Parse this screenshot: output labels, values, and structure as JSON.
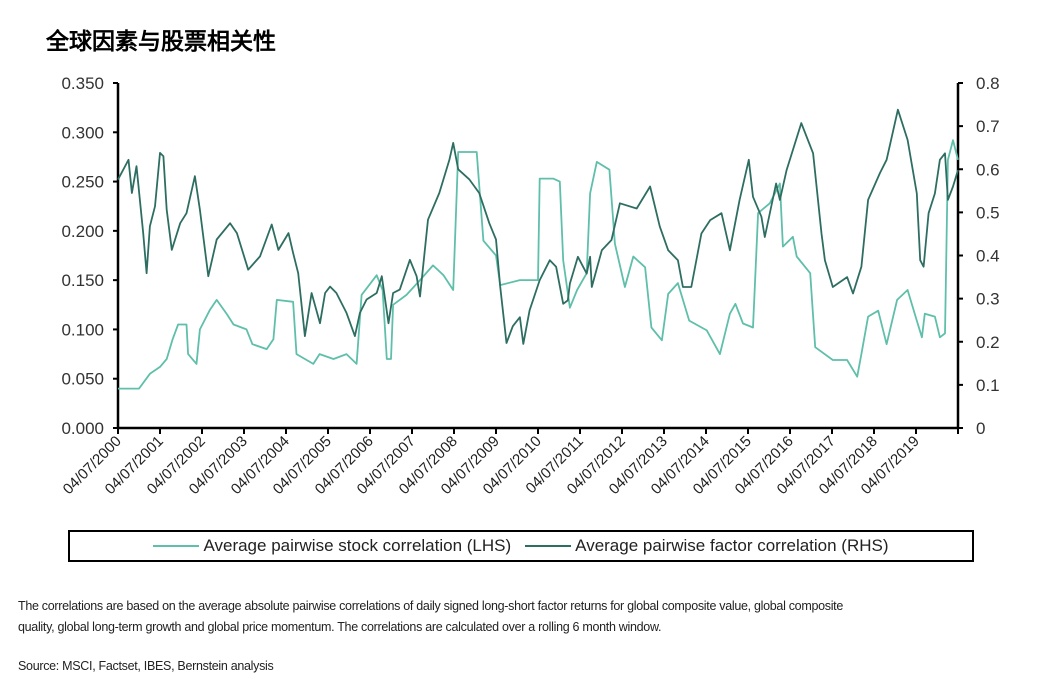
{
  "title": "全球因素与股票相关性",
  "chart_data": {
    "type": "line",
    "title": "全球因素与股票相关性",
    "x_tick_labels": [
      "04/07/2000",
      "04/07/2001",
      "04/07/2002",
      "04/07/2003",
      "04/07/2004",
      "04/07/2005",
      "04/07/2006",
      "04/07/2007",
      "04/07/2008",
      "04/07/2009",
      "04/07/2010",
      "04/07/2011",
      "04/07/2012",
      "04/07/2013",
      "04/07/2014",
      "04/07/2015",
      "04/07/2016",
      "04/07/2017",
      "04/07/2018",
      "04/07/2019"
    ],
    "xlim": [
      2000,
      2020
    ],
    "left_axis": {
      "ylim": [
        0,
        0.35
      ],
      "ticks": [
        "0.000",
        "0.050",
        "0.100",
        "0.150",
        "0.200",
        "0.250",
        "0.300",
        "0.350"
      ]
    },
    "right_axis": {
      "ylim": [
        0,
        0.8
      ],
      "ticks": [
        "0",
        "0.1",
        "0.2",
        "0.3",
        "0.4",
        "0.5",
        "0.6",
        "0.7",
        "0.8"
      ]
    },
    "legend_position": "bottom",
    "series": [
      {
        "name": "Average pairwise stock correlation (LHS)",
        "axis": "left",
        "color": "#5fbfab",
        "points": [
          [
            2000.0,
            0.04
          ],
          [
            2000.5,
            0.04
          ],
          [
            2000.76,
            0.055
          ],
          [
            2001.0,
            0.062
          ],
          [
            2001.16,
            0.07
          ],
          [
            2001.3,
            0.09
          ],
          [
            2001.43,
            0.105
          ],
          [
            2001.63,
            0.105
          ],
          [
            2001.67,
            0.075
          ],
          [
            2001.87,
            0.065
          ],
          [
            2001.95,
            0.1
          ],
          [
            2002.19,
            0.12
          ],
          [
            2002.35,
            0.13
          ],
          [
            2002.6,
            0.115
          ],
          [
            2002.75,
            0.105
          ],
          [
            2003.06,
            0.1
          ],
          [
            2003.2,
            0.085
          ],
          [
            2003.54,
            0.08
          ],
          [
            2003.7,
            0.09
          ],
          [
            2003.78,
            0.13
          ],
          [
            2004.17,
            0.128
          ],
          [
            2004.25,
            0.075
          ],
          [
            2004.65,
            0.065
          ],
          [
            2004.8,
            0.075
          ],
          [
            2005.13,
            0.07
          ],
          [
            2005.44,
            0.075
          ],
          [
            2005.68,
            0.065
          ],
          [
            2005.8,
            0.135
          ],
          [
            2006.16,
            0.155
          ],
          [
            2006.3,
            0.14
          ],
          [
            2006.4,
            0.07
          ],
          [
            2006.5,
            0.07
          ],
          [
            2006.55,
            0.125
          ],
          [
            2006.87,
            0.135
          ],
          [
            2007.19,
            0.15
          ],
          [
            2007.5,
            0.165
          ],
          [
            2007.75,
            0.155
          ],
          [
            2007.98,
            0.14
          ],
          [
            2008.1,
            0.28
          ],
          [
            2008.54,
            0.28
          ],
          [
            2008.7,
            0.19
          ],
          [
            2009.0,
            0.175
          ],
          [
            2009.1,
            0.145
          ],
          [
            2009.57,
            0.15
          ],
          [
            2010.0,
            0.15
          ],
          [
            2010.04,
            0.253
          ],
          [
            2010.36,
            0.253
          ],
          [
            2010.52,
            0.25
          ],
          [
            2010.6,
            0.17
          ],
          [
            2010.76,
            0.122
          ],
          [
            2010.93,
            0.14
          ],
          [
            2011.16,
            0.157
          ],
          [
            2011.24,
            0.238
          ],
          [
            2011.4,
            0.27
          ],
          [
            2011.7,
            0.262
          ],
          [
            2011.83,
            0.187
          ],
          [
            2012.07,
            0.143
          ],
          [
            2012.27,
            0.174
          ],
          [
            2012.55,
            0.163
          ],
          [
            2012.7,
            0.102
          ],
          [
            2012.95,
            0.089
          ],
          [
            2013.1,
            0.136
          ],
          [
            2013.33,
            0.147
          ],
          [
            2013.6,
            0.109
          ],
          [
            2014.02,
            0.099
          ],
          [
            2014.33,
            0.075
          ],
          [
            2014.57,
            0.116
          ],
          [
            2014.7,
            0.126
          ],
          [
            2014.88,
            0.106
          ],
          [
            2015.12,
            0.102
          ],
          [
            2015.24,
            0.218
          ],
          [
            2015.52,
            0.228
          ],
          [
            2015.76,
            0.248
          ],
          [
            2015.83,
            0.184
          ],
          [
            2016.07,
            0.194
          ],
          [
            2016.16,
            0.174
          ],
          [
            2016.48,
            0.157
          ],
          [
            2016.6,
            0.082
          ],
          [
            2017.02,
            0.069
          ],
          [
            2017.36,
            0.069
          ],
          [
            2017.6,
            0.052
          ],
          [
            2017.7,
            0.075
          ],
          [
            2017.86,
            0.113
          ],
          [
            2018.1,
            0.119
          ],
          [
            2018.3,
            0.085
          ],
          [
            2018.55,
            0.13
          ],
          [
            2018.8,
            0.14
          ],
          [
            2019.02,
            0.109
          ],
          [
            2019.14,
            0.092
          ],
          [
            2019.21,
            0.116
          ],
          [
            2019.45,
            0.113
          ],
          [
            2019.57,
            0.092
          ],
          [
            2019.69,
            0.096
          ],
          [
            2019.76,
            0.272
          ],
          [
            2019.88,
            0.292
          ],
          [
            2020.0,
            0.272
          ]
        ]
      },
      {
        "name": "Average pairwise factor correlation (RHS)",
        "axis": "right",
        "color": "#2e6e62",
        "points": [
          [
            2000.0,
            0.576
          ],
          [
            2000.25,
            0.622
          ],
          [
            2000.33,
            0.545
          ],
          [
            2000.44,
            0.607
          ],
          [
            2000.6,
            0.452
          ],
          [
            2000.68,
            0.359
          ],
          [
            2000.76,
            0.468
          ],
          [
            2000.88,
            0.514
          ],
          [
            2001.0,
            0.638
          ],
          [
            2001.08,
            0.63
          ],
          [
            2001.16,
            0.506
          ],
          [
            2001.28,
            0.413
          ],
          [
            2001.48,
            0.475
          ],
          [
            2001.63,
            0.498
          ],
          [
            2001.83,
            0.584
          ],
          [
            2001.95,
            0.506
          ],
          [
            2002.15,
            0.352
          ],
          [
            2002.35,
            0.437
          ],
          [
            2002.67,
            0.475
          ],
          [
            2002.83,
            0.452
          ],
          [
            2003.1,
            0.367
          ],
          [
            2003.38,
            0.398
          ],
          [
            2003.66,
            0.472
          ],
          [
            2003.82,
            0.413
          ],
          [
            2004.06,
            0.452
          ],
          [
            2004.17,
            0.406
          ],
          [
            2004.29,
            0.359
          ],
          [
            2004.45,
            0.213
          ],
          [
            2004.61,
            0.313
          ],
          [
            2004.81,
            0.243
          ],
          [
            2004.93,
            0.313
          ],
          [
            2005.05,
            0.328
          ],
          [
            2005.2,
            0.313
          ],
          [
            2005.44,
            0.267
          ],
          [
            2005.64,
            0.213
          ],
          [
            2005.76,
            0.267
          ],
          [
            2005.92,
            0.298
          ],
          [
            2006.16,
            0.313
          ],
          [
            2006.28,
            0.352
          ],
          [
            2006.44,
            0.243
          ],
          [
            2006.55,
            0.313
          ],
          [
            2006.71,
            0.321
          ],
          [
            2006.95,
            0.39
          ],
          [
            2007.11,
            0.352
          ],
          [
            2007.19,
            0.305
          ],
          [
            2007.38,
            0.483
          ],
          [
            2007.65,
            0.545
          ],
          [
            2007.89,
            0.622
          ],
          [
            2007.98,
            0.661
          ],
          [
            2008.1,
            0.6
          ],
          [
            2008.37,
            0.576
          ],
          [
            2008.6,
            0.545
          ],
          [
            2008.84,
            0.475
          ],
          [
            2009.0,
            0.437
          ],
          [
            2009.1,
            0.328
          ],
          [
            2009.25,
            0.197
          ],
          [
            2009.4,
            0.236
          ],
          [
            2009.57,
            0.257
          ],
          [
            2009.65,
            0.195
          ],
          [
            2009.8,
            0.273
          ],
          [
            2010.04,
            0.343
          ],
          [
            2010.28,
            0.389
          ],
          [
            2010.43,
            0.374
          ],
          [
            2010.6,
            0.288
          ],
          [
            2010.71,
            0.296
          ],
          [
            2010.76,
            0.335
          ],
          [
            2010.95,
            0.397
          ],
          [
            2011.16,
            0.358
          ],
          [
            2011.24,
            0.397
          ],
          [
            2011.28,
            0.327
          ],
          [
            2011.52,
            0.412
          ],
          [
            2011.75,
            0.436
          ],
          [
            2011.95,
            0.521
          ],
          [
            2012.35,
            0.509
          ],
          [
            2012.67,
            0.56
          ],
          [
            2012.9,
            0.467
          ],
          [
            2013.1,
            0.412
          ],
          [
            2013.33,
            0.389
          ],
          [
            2013.45,
            0.327
          ],
          [
            2013.65,
            0.327
          ],
          [
            2013.89,
            0.451
          ],
          [
            2014.1,
            0.482
          ],
          [
            2014.37,
            0.498
          ],
          [
            2014.57,
            0.412
          ],
          [
            2014.8,
            0.529
          ],
          [
            2015.02,
            0.622
          ],
          [
            2015.12,
            0.536
          ],
          [
            2015.32,
            0.49
          ],
          [
            2015.4,
            0.443
          ],
          [
            2015.67,
            0.567
          ],
          [
            2015.76,
            0.529
          ],
          [
            2015.92,
            0.598
          ],
          [
            2016.27,
            0.707
          ],
          [
            2016.55,
            0.637
          ],
          [
            2016.75,
            0.451
          ],
          [
            2016.83,
            0.389
          ],
          [
            2017.02,
            0.327
          ],
          [
            2017.36,
            0.35
          ],
          [
            2017.5,
            0.312
          ],
          [
            2017.7,
            0.374
          ],
          [
            2017.86,
            0.529
          ],
          [
            2018.14,
            0.591
          ],
          [
            2018.3,
            0.622
          ],
          [
            2018.57,
            0.738
          ],
          [
            2018.8,
            0.668
          ],
          [
            2019.02,
            0.544
          ],
          [
            2019.1,
            0.389
          ],
          [
            2019.18,
            0.374
          ],
          [
            2019.3,
            0.498
          ],
          [
            2019.45,
            0.544
          ],
          [
            2019.57,
            0.622
          ],
          [
            2019.69,
            0.637
          ],
          [
            2019.76,
            0.529
          ],
          [
            2019.88,
            0.56
          ],
          [
            2020.0,
            0.598
          ]
        ]
      }
    ]
  },
  "footnote": {
    "line1": "The correlations are based on the average absolute pairwise correlations of daily signed long-short factor returns for global composite value, global composite",
    "line2": "quality, global long-term growth and global price momentum. The correlations are calculated over a rolling 6 month window.",
    "source": "Source: MSCI, Factset, IBES, Bernstein analysis"
  }
}
